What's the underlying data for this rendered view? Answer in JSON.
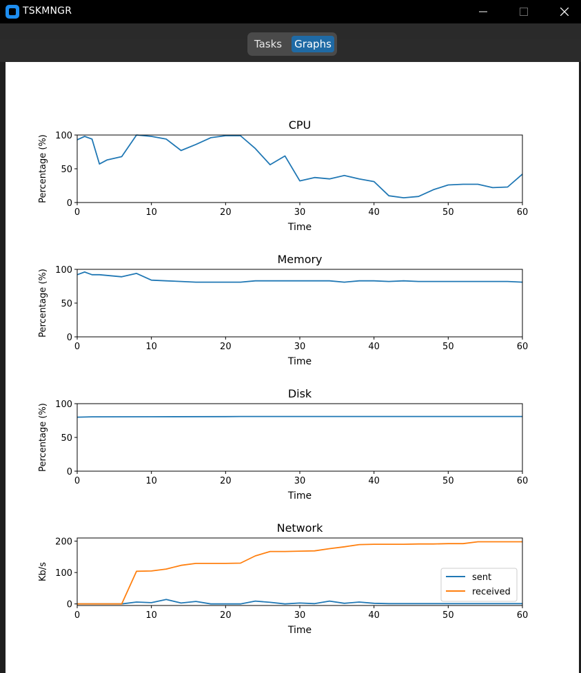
{
  "window": {
    "title": "TSKMNGR",
    "icons": {
      "app": "app-icon",
      "minimize": "minimize-icon",
      "maximize": "maximize-icon",
      "close": "close-icon"
    }
  },
  "tabs": [
    {
      "label": "Tasks",
      "selected": false
    },
    {
      "label": "Graphs",
      "selected": true
    }
  ],
  "colors": {
    "accent": "#1f6aa5",
    "sent": "#1f77b4",
    "received": "#ff7f0e"
  },
  "chart_data": [
    {
      "type": "line",
      "title": "CPU",
      "xlabel": "Time",
      "ylabel": "Percentage (%)",
      "xlim": [
        0,
        60
      ],
      "ylim": [
        0,
        100
      ],
      "xticks": [
        0,
        10,
        20,
        30,
        40,
        50,
        60
      ],
      "yticks": [
        0,
        50,
        100
      ],
      "x": [
        0,
        1,
        2,
        3,
        4,
        6,
        8,
        10,
        12,
        14,
        16,
        18,
        20,
        22,
        24,
        26,
        28,
        30,
        32,
        34,
        36,
        38,
        40,
        42,
        44,
        46,
        48,
        50,
        52,
        54,
        56,
        58,
        60
      ],
      "series": [
        {
          "values": [
            93,
            98,
            94,
            57,
            63,
            68,
            100,
            98,
            94,
            77,
            86,
            96,
            99,
            99,
            80,
            56,
            69,
            32,
            37,
            35,
            40,
            35,
            31,
            10,
            7,
            9,
            19,
            26,
            27,
            27,
            22,
            23,
            42
          ]
        }
      ]
    },
    {
      "type": "line",
      "title": "Memory",
      "xlabel": "Time",
      "ylabel": "Percentage (%)",
      "xlim": [
        0,
        60
      ],
      "ylim": [
        0,
        100
      ],
      "xticks": [
        0,
        10,
        20,
        30,
        40,
        50,
        60
      ],
      "yticks": [
        0,
        50,
        100
      ],
      "x": [
        0,
        1,
        2,
        3,
        4,
        6,
        8,
        10,
        12,
        14,
        16,
        18,
        20,
        22,
        24,
        26,
        28,
        30,
        32,
        34,
        36,
        38,
        40,
        42,
        44,
        46,
        48,
        50,
        52,
        54,
        56,
        58,
        60
      ],
      "series": [
        {
          "values": [
            92,
            96,
            92,
            92,
            91,
            89,
            94,
            84,
            83,
            82,
            81,
            81,
            81,
            81,
            83,
            83,
            83,
            83,
            83,
            83,
            81,
            83,
            83,
            82,
            83,
            82,
            82,
            82,
            82,
            82,
            82,
            82,
            81
          ]
        }
      ]
    },
    {
      "type": "line",
      "title": "Disk",
      "xlabel": "Time",
      "ylabel": "Percentage (%)",
      "xlim": [
        0,
        60
      ],
      "ylim": [
        0,
        100
      ],
      "xticks": [
        0,
        10,
        20,
        30,
        40,
        50,
        60
      ],
      "yticks": [
        0,
        50,
        100
      ],
      "x": [
        0,
        2,
        10,
        20,
        22,
        30,
        40,
        50,
        60
      ],
      "series": [
        {
          "values": [
            80,
            80.5,
            80.6,
            80.8,
            81,
            81,
            81,
            81,
            81
          ]
        }
      ]
    },
    {
      "type": "line",
      "title": "Network",
      "xlabel": "Time",
      "ylabel": "Kb/s",
      "xlim": [
        0,
        60
      ],
      "ylim": [
        -5,
        210
      ],
      "xticks": [
        0,
        10,
        20,
        30,
        40,
        50,
        60
      ],
      "yticks": [
        0,
        100,
        200
      ],
      "legend": "right",
      "x": [
        0,
        1,
        2,
        3,
        4,
        6,
        8,
        10,
        12,
        14,
        16,
        18,
        20,
        22,
        24,
        26,
        28,
        30,
        32,
        34,
        36,
        38,
        40,
        42,
        44,
        46,
        48,
        50,
        52,
        54,
        56,
        58,
        60
      ],
      "series": [
        {
          "name": "sent",
          "values": [
            0,
            0,
            0,
            0,
            0,
            0,
            6,
            4,
            14,
            3,
            8,
            0,
            0,
            0,
            9,
            5,
            0,
            3,
            1,
            9,
            2,
            6,
            2,
            1,
            1,
            1,
            1,
            1,
            1,
            1,
            1,
            1,
            1
          ]
        },
        {
          "name": "received",
          "values": [
            0,
            0,
            0,
            0,
            0,
            0,
            104,
            105,
            111,
            123,
            129,
            129,
            129,
            130,
            153,
            167,
            167,
            168,
            169,
            176,
            182,
            189,
            190,
            190,
            190,
            191,
            191,
            192,
            192,
            198,
            198,
            198,
            198
          ]
        }
      ]
    }
  ]
}
